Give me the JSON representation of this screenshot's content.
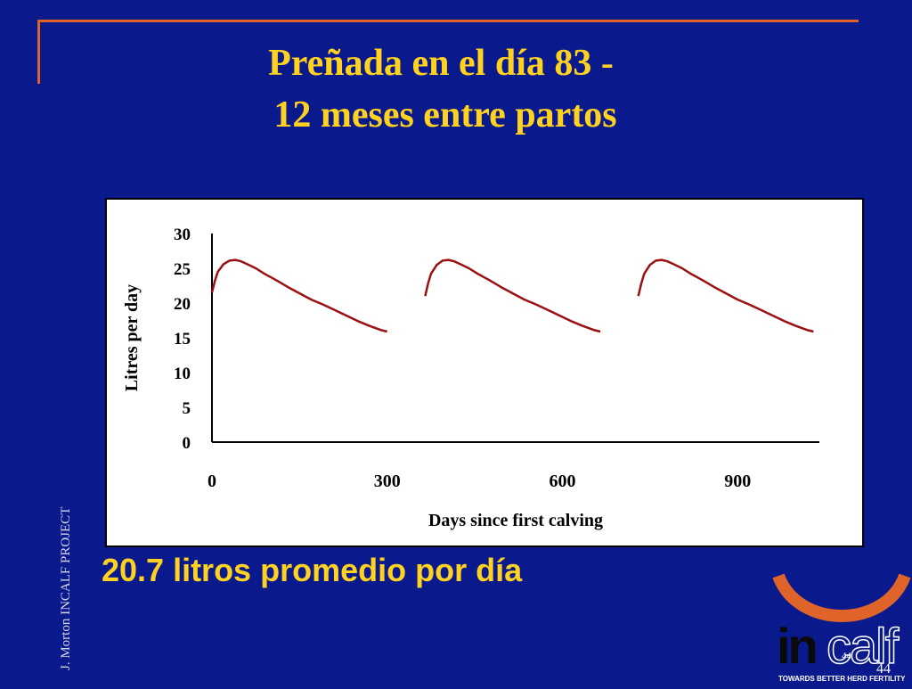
{
  "slide": {
    "title_line1": "Preñada en el día 83 -",
    "title_line2": "12 meses entre partos",
    "subtitle": "20.7 litros promedio por día",
    "side_credit": "J. Morton INCALF PROJECT",
    "page_small": "44",
    "page_number": "44",
    "logo_text": "incalf",
    "logo_tagline": "TOWARDS BETTER HERD FERTILITY"
  },
  "colors": {
    "background": "#0a1a8c",
    "title": "#ffd21f",
    "accent_orange": "#e0642a",
    "curve": "#9b1010"
  },
  "chart_data": {
    "type": "line",
    "xlabel": "Days since first calving",
    "ylabel": "Litres per day",
    "xlim": [
      0,
      1040
    ],
    "ylim": [
      0,
      30
    ],
    "x_ticks": [
      0,
      300,
      600,
      900
    ],
    "y_ticks": [
      0,
      5,
      10,
      15,
      20,
      25,
      30
    ],
    "grid": false,
    "legend": "none",
    "series": [
      {
        "x": [
          0,
          5,
          10,
          20,
          30,
          40,
          50,
          60,
          75,
          90,
          110,
          130,
          150,
          170,
          190,
          210,
          230,
          250,
          270,
          290,
          300
        ],
        "y": [
          21.5,
          23.2,
          24.5,
          25.6,
          26.1,
          26.2,
          26.0,
          25.6,
          25.0,
          24.2,
          23.3,
          22.3,
          21.4,
          20.5,
          19.8,
          19.0,
          18.2,
          17.4,
          16.7,
          16.1,
          15.9
        ]
      },
      {
        "x": [
          365,
          370,
          375,
          385,
          395,
          405,
          415,
          425,
          440,
          455,
          475,
          495,
          515,
          535,
          555,
          575,
          595,
          615,
          635,
          655,
          665
        ],
        "y": [
          21.0,
          22.8,
          24.2,
          25.5,
          26.1,
          26.2,
          26.0,
          25.6,
          25.0,
          24.2,
          23.3,
          22.3,
          21.4,
          20.5,
          19.8,
          19.0,
          18.2,
          17.4,
          16.7,
          16.1,
          15.9
        ]
      },
      {
        "x": [
          730,
          735,
          740,
          750,
          760,
          770,
          780,
          790,
          805,
          820,
          840,
          860,
          880,
          900,
          920,
          940,
          960,
          980,
          1000,
          1020,
          1030
        ],
        "y": [
          21.0,
          22.8,
          24.2,
          25.5,
          26.1,
          26.2,
          26.0,
          25.6,
          25.0,
          24.2,
          23.3,
          22.3,
          21.4,
          20.5,
          19.8,
          19.0,
          18.2,
          17.4,
          16.7,
          16.1,
          15.9
        ]
      }
    ]
  }
}
